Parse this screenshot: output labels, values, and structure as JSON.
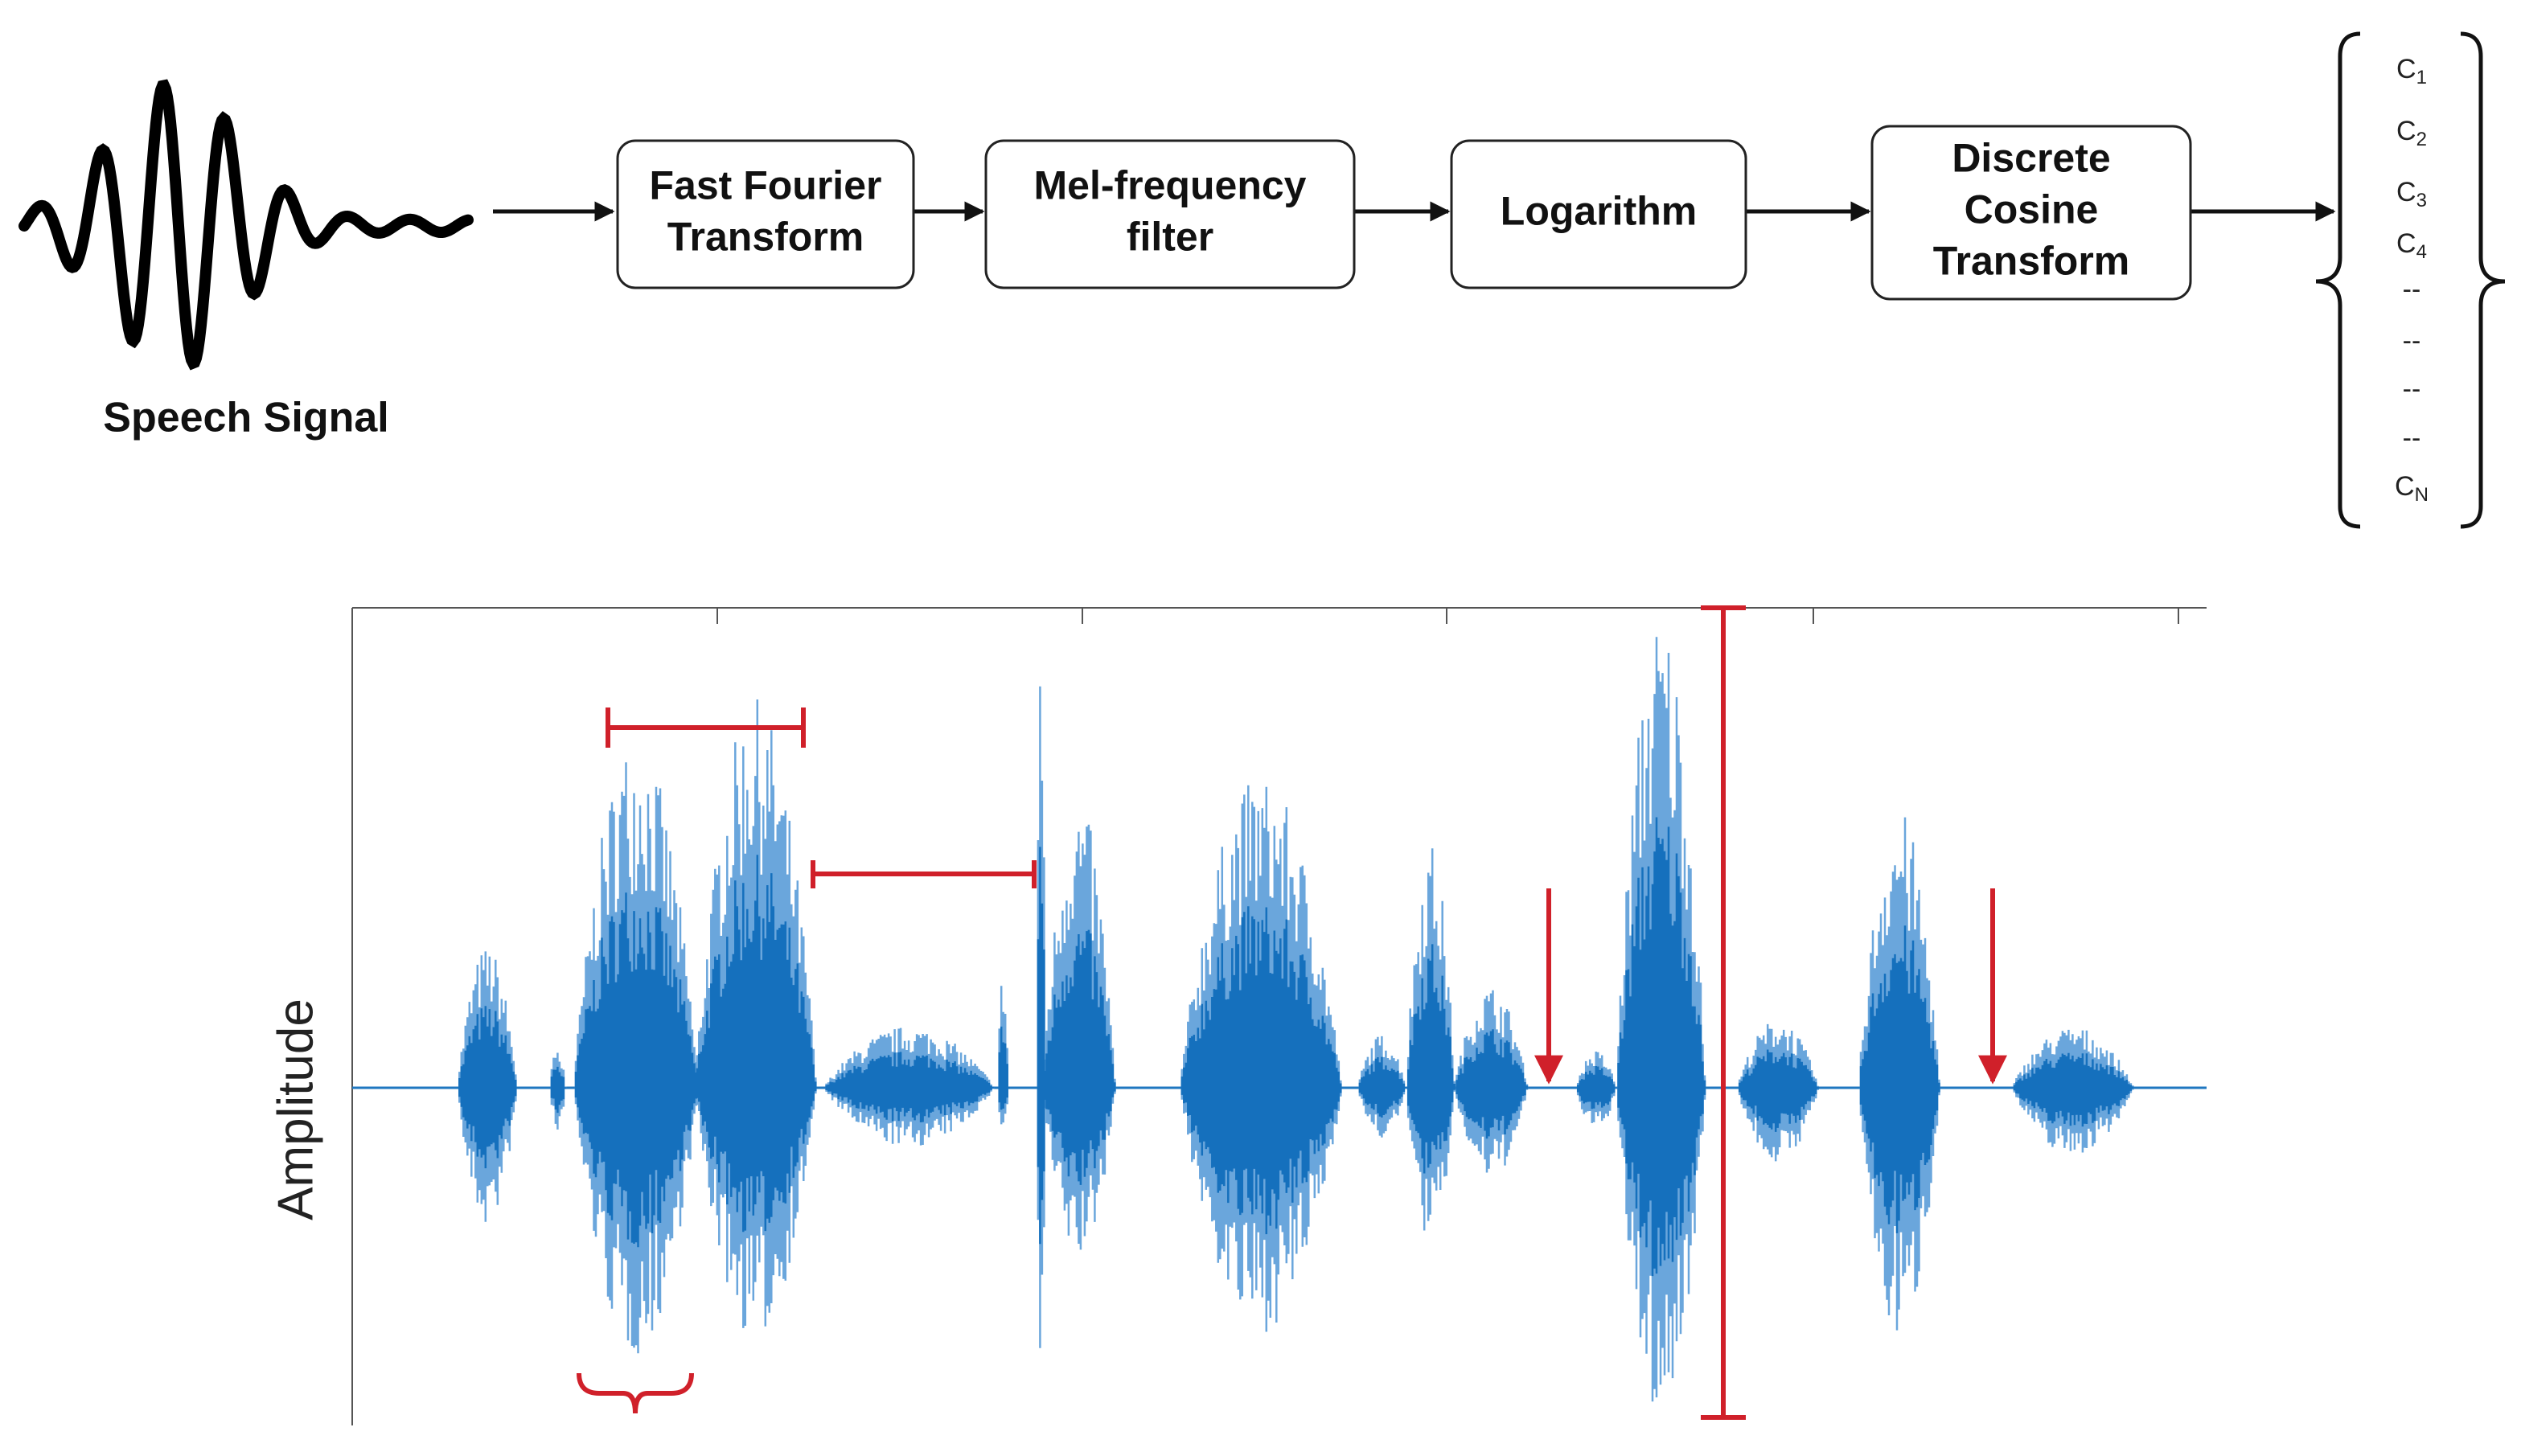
{
  "signal_label": "Speech Signal",
  "steps": [
    {
      "lines": [
        "Fast Fourier",
        "Transform"
      ]
    },
    {
      "lines": [
        "Mel-frequency",
        "filter"
      ]
    },
    {
      "lines": [
        "Logarithm"
      ]
    },
    {
      "lines": [
        "Discrete",
        "Cosine",
        "Transform"
      ]
    }
  ],
  "coefficients": [
    {
      "base": "C",
      "sub": "1"
    },
    {
      "base": "C",
      "sub": "2"
    },
    {
      "base": "C",
      "sub": "3"
    },
    {
      "base": "C",
      "sub": "4"
    },
    "--",
    "--",
    "--",
    "--",
    {
      "base": "C",
      "sub": "N"
    }
  ],
  "plot": {
    "y_label": "Amplitude"
  }
}
